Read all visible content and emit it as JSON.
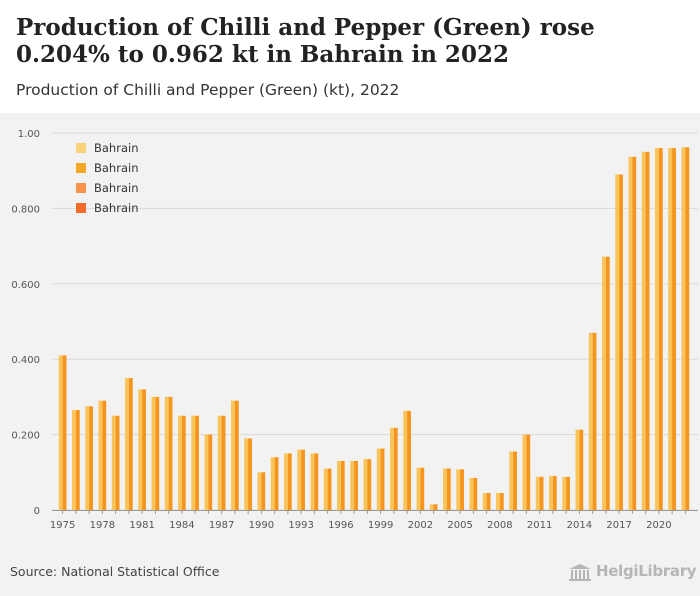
{
  "header": {
    "title": "Production of Chilli and Pepper (Green) rose 0.204% to 0.962 kt in Bahrain in 2022",
    "subtitle": "Production of Chilli and Pepper (Green) (kt), 2022"
  },
  "footer": {
    "source": "Source: National Statistical Office",
    "brand": "HelgiLibrary"
  },
  "chart_data": {
    "type": "bar",
    "ylim": [
      0,
      1.0
    ],
    "yticks": [
      {
        "value": 0,
        "label": "0"
      },
      {
        "value": 0.2,
        "label": "0.200"
      },
      {
        "value": 0.4,
        "label": "0.400"
      },
      {
        "value": 0.6,
        "label": "0.600"
      },
      {
        "value": 0.8,
        "label": "0.800"
      },
      {
        "value": 1.0,
        "label": "1.00"
      }
    ],
    "xtick_labels": [
      "1975",
      "1978",
      "1981",
      "1984",
      "1987",
      "1990",
      "1993",
      "1996",
      "1999",
      "2002",
      "2005",
      "2008",
      "2011",
      "2014",
      "2017",
      "2020"
    ],
    "grid": true,
    "legend_position": "top-left",
    "legend": [
      "Bahrain",
      "Bahrain",
      "Bahrain",
      "Bahrain"
    ],
    "legend_colors": [
      "#F9D47A",
      "#F5A623",
      "#F7944A",
      "#F26B2A"
    ],
    "bar_colors": {
      "light": "#F9C45A",
      "dark": "#F5951E"
    },
    "categories": [
      "1975",
      "1976",
      "1977",
      "1978",
      "1979",
      "1980",
      "1981",
      "1982",
      "1983",
      "1984",
      "1985",
      "1986",
      "1987",
      "1988",
      "1989",
      "1990",
      "1991",
      "1992",
      "1993",
      "1994",
      "1995",
      "1996",
      "1997",
      "1998",
      "1999",
      "2000",
      "2001",
      "2002",
      "2003",
      "2004",
      "2005",
      "2006",
      "2007",
      "2008",
      "2009",
      "2010",
      "2011",
      "2012",
      "2013",
      "2014",
      "2015",
      "2016",
      "2017",
      "2018",
      "2019",
      "2020",
      "2021",
      "2022"
    ],
    "values": [
      0.41,
      0.265,
      0.275,
      0.29,
      0.25,
      0.35,
      0.32,
      0.3,
      0.3,
      0.25,
      0.25,
      0.2,
      0.25,
      0.29,
      0.19,
      0.1,
      0.14,
      0.15,
      0.16,
      0.15,
      0.11,
      0.13,
      0.13,
      0.135,
      0.163,
      0.218,
      0.263,
      0.112,
      0.015,
      0.11,
      0.108,
      0.085,
      0.045,
      0.045,
      0.155,
      0.2,
      0.088,
      0.09,
      0.088,
      0.213,
      0.47,
      0.672,
      0.89,
      0.937,
      0.95,
      0.96,
      0.96,
      0.962
    ]
  }
}
